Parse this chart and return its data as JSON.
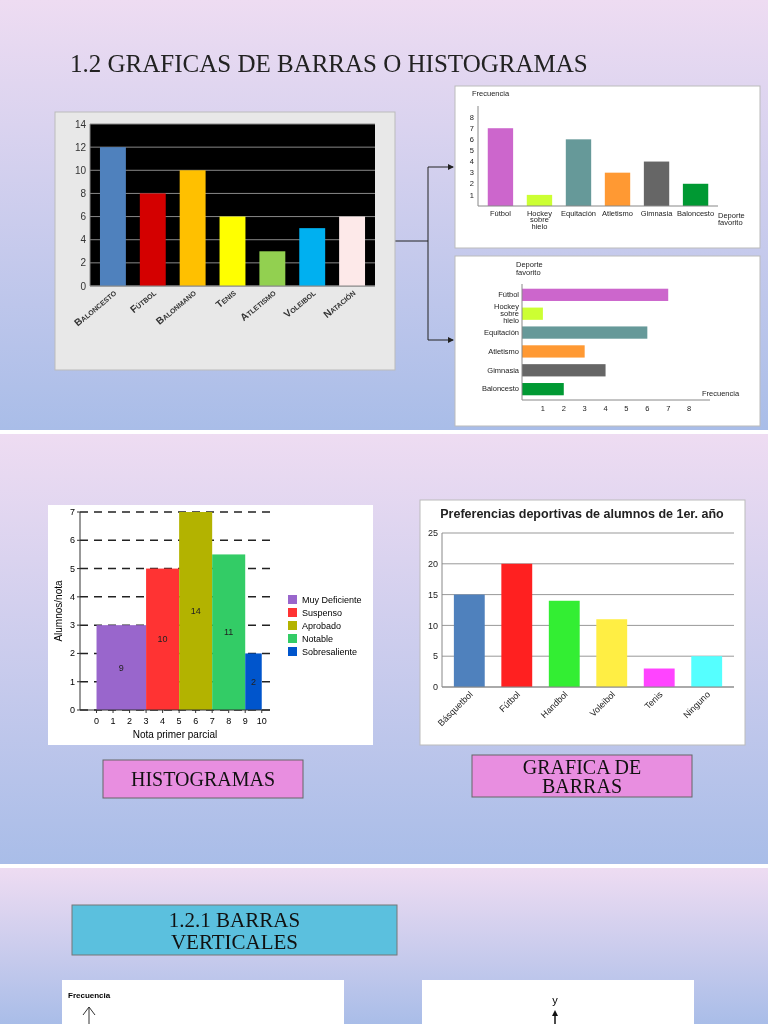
{
  "chart_data": [
    {
      "type": "bar",
      "title": "1.2 GRAFICAS DE BARRAS O HISTOGRAMAS",
      "categories": [
        "Baloncesto",
        "Fútbol",
        "Balonmano",
        "Tenis",
        "Atletismo",
        "Voleibol",
        "Natación"
      ],
      "values": [
        12,
        8,
        10,
        6,
        3,
        5,
        6
      ],
      "colors": [
        "#4f81bd",
        "#d40000",
        "#ffc000",
        "#ffff00",
        "#92d050",
        "#00b0f0",
        "#fde9e9"
      ],
      "ylim": [
        0,
        14
      ],
      "yticks": [
        0,
        2,
        4,
        6,
        8,
        10,
        12,
        14
      ],
      "grid": "y"
    },
    {
      "type": "bar",
      "xlabel": "Deporte favorito",
      "ylabel": "Frecuencia",
      "categories": [
        "Fútbol",
        "Hockey sobre hielo",
        "Equitación",
        "Atletismo",
        "Gimnasia",
        "Baloncesto"
      ],
      "values": [
        7,
        1,
        6,
        3,
        4,
        2
      ],
      "colors": [
        "#cc66cc",
        "#ccff33",
        "#669999",
        "#ff9933",
        "#666666",
        "#009933"
      ],
      "ylim": [
        0,
        9
      ],
      "yticks": [
        1,
        2,
        3,
        4,
        5,
        6,
        7,
        8
      ]
    },
    {
      "type": "bar",
      "orientation": "horizontal",
      "xlabel": "Frecuencia",
      "ylabel": "Deporte favorito",
      "categories": [
        "Fútbol",
        "Hockey sobre hielo",
        "Equitación",
        "Atletismo",
        "Gimnasia",
        "Baloncesto"
      ],
      "values": [
        7,
        1,
        6,
        3,
        4,
        2
      ],
      "colors": [
        "#cc66cc",
        "#ccff33",
        "#669999",
        "#ff9933",
        "#666666",
        "#009933"
      ],
      "xlim": [
        0,
        9
      ],
      "xticks": [
        1,
        2,
        3,
        4,
        5,
        6,
        7,
        8
      ]
    },
    {
      "type": "histogram",
      "xlabel": "Nota primer parcial",
      "ylabel": "Alumnos/nota",
      "bins": [
        0,
        3,
        5,
        7,
        9,
        10
      ],
      "series": [
        {
          "name": "Muy Deficiente",
          "color": "#9966cc",
          "values": [
            3,
            null,
            null,
            null,
            null
          ]
        },
        {
          "name": "Suspenso",
          "color": "#ff3333",
          "values": [
            null,
            5,
            null,
            null,
            null
          ]
        },
        {
          "name": "Aprobado",
          "color": "#b3b300",
          "values": [
            null,
            null,
            7,
            null,
            null
          ]
        },
        {
          "name": "Notable",
          "color": "#33cc66",
          "values": [
            null,
            null,
            null,
            5.5,
            null
          ]
        },
        {
          "name": "Sobresaliente",
          "color": "#0055cc",
          "values": [
            null,
            null,
            null,
            null,
            2
          ]
        }
      ],
      "xlim": [
        -1,
        10.5
      ],
      "xticks": [
        0,
        1,
        2,
        3,
        4,
        5,
        6,
        7,
        8,
        9,
        10
      ],
      "ylim": [
        0,
        7
      ],
      "yticks": [
        0,
        1,
        2,
        3,
        4,
        5,
        6,
        7
      ],
      "grid": "y",
      "legend": "right",
      "annotations": [
        "HISTOGRAMAS",
        "9",
        "10",
        "14",
        "11",
        "2"
      ]
    },
    {
      "type": "bar",
      "title": "Preferencias deportivas de alumnos de 1er. año",
      "categories": [
        "Básquetbol",
        "Fútbol",
        "Handbol",
        "Voleibol",
        "Tenis",
        "Ninguno"
      ],
      "values": [
        15,
        20,
        14,
        11,
        3,
        5
      ],
      "colors": [
        "#4f81bd",
        "#ff2020",
        "#33ee33",
        "#ffee44",
        "#ff44ff",
        "#55ffff"
      ],
      "ylim": [
        0,
        25
      ],
      "yticks": [
        0,
        5,
        10,
        15,
        20,
        25
      ],
      "grid": "y",
      "annotations": [
        "GRAFICA DE BARRAS"
      ]
    },
    {
      "type": "other",
      "title": "1.2.1 BARRAS VERTICALES",
      "annotations": [
        "Frecuencia",
        "y"
      ]
    }
  ]
}
